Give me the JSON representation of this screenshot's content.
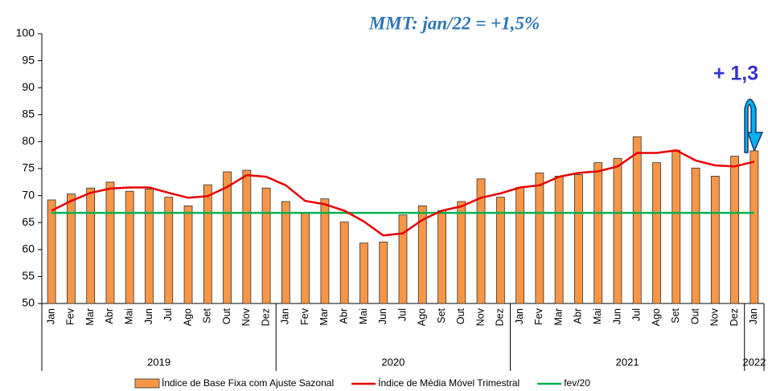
{
  "chart_data": {
    "type": "bar",
    "title": "MMT: jan/22 = +1,5%",
    "annotation": "+ 1,3",
    "categories": [
      "Jan",
      "Fev",
      "Mar",
      "Abr",
      "Mai",
      "Jun",
      "Jul",
      "Ago",
      "Set",
      "Out",
      "Nov",
      "Dez",
      "Jan",
      "Fev",
      "Mar",
      "Abr",
      "Mai",
      "Jun",
      "Jul",
      "Ago",
      "Set",
      "Out",
      "Nov",
      "Dez",
      "Jan",
      "Fev",
      "Mar",
      "Abr",
      "Mai",
      "Jun",
      "Jul",
      "Ago",
      "Set",
      "Out",
      "Nov",
      "Dez",
      "Jan"
    ],
    "year_groups": [
      "2019",
      "2020",
      "2021",
      "2022"
    ],
    "series": [
      {
        "name": "Índice de Base Fixa com Ajuste Sazonal",
        "type": "bar",
        "color": "#f79646",
        "values": [
          69.2,
          70.3,
          71.4,
          72.5,
          70.8,
          71.2,
          69.7,
          68.1,
          72.0,
          74.4,
          74.7,
          71.4,
          68.9,
          66.8,
          69.4,
          65.1,
          61.2,
          61.4,
          66.4,
          68.1,
          67.2,
          68.9,
          73.1,
          69.7,
          71.5,
          74.2,
          73.6,
          73.9,
          76.1,
          76.9,
          80.9,
          76.1,
          78.4,
          75.1,
          73.6,
          77.3,
          78.3
        ]
      },
      {
        "name": "Índice de Média Móvel Trimestral",
        "type": "line",
        "color": "#e60000",
        "values": [
          67.2,
          69.0,
          70.5,
          71.3,
          71.5,
          71.5,
          70.5,
          69.6,
          69.9,
          71.6,
          73.8,
          73.5,
          71.9,
          69.0,
          68.4,
          67.2,
          65.2,
          62.6,
          63.0,
          65.5,
          67.2,
          68.0,
          69.6,
          70.4,
          71.5,
          71.9,
          73.5,
          74.2,
          74.5,
          75.4,
          77.9,
          77.9,
          78.4,
          76.5,
          75.6,
          75.4,
          76.3
        ]
      }
    ],
    "reference": {
      "name": "fev/20",
      "color": "#00b050",
      "value": 66.8
    },
    "ylim": [
      50,
      100
    ],
    "yticks": [
      50,
      55,
      60,
      65,
      70,
      75,
      80,
      85,
      90,
      95,
      100
    ],
    "grid": false
  }
}
